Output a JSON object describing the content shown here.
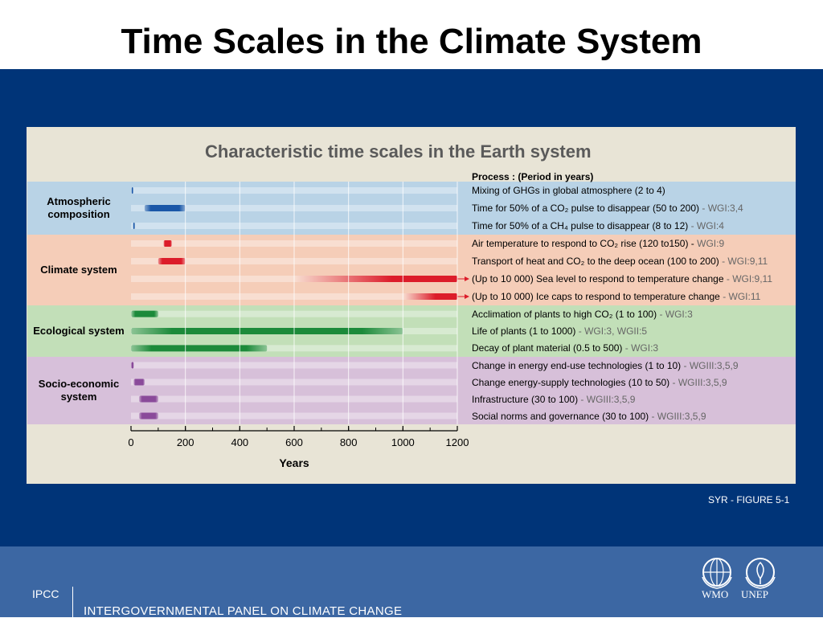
{
  "slide_title": "Time Scales in the Climate System",
  "footer": {
    "figure_credit": "SYR - FIGURE 5-1",
    "org_short": "IPCC",
    "org_long": "INTERGOVERNMENTAL PANEL ON CLIMATE CHANGE",
    "logo_wmo": "WMO",
    "logo_unep": "UNEP"
  },
  "chart_data": {
    "type": "bar",
    "title": "Characteristic time scales in the Earth system",
    "process_header": "Process : (Period in years)",
    "xlabel": "Years",
    "xlim": [
      0,
      1200
    ],
    "x_ticks": [
      0,
      200,
      400,
      600,
      800,
      1000,
      1200
    ],
    "grid": true,
    "groups": [
      {
        "name": "Atmospheric composition",
        "color": "#b9d3e6",
        "bar_color": "#1a57a8",
        "rows": [
          {
            "label": "Mixing of GHGs in global atmosphere (2 to 4)",
            "ref": "",
            "start": 2,
            "end": 4
          },
          {
            "label": "Time for 50% of a CO₂ pulse to disappear (50 to 200)",
            "ref": " - WGI:3,4",
            "start": 50,
            "end": 200
          },
          {
            "label": "Time for 50% of a CH₄ pulse to disappear (8 to 12)",
            "ref": " - WGI:4",
            "start": 8,
            "end": 12
          }
        ]
      },
      {
        "name": "Climate system",
        "color": "#f5cdb8",
        "bar_color": "#dc1c2a",
        "rows": [
          {
            "label": "Air temperature to respond to CO₂ rise (120 to150) - ",
            "ref": " WGI:9",
            "start": 120,
            "end": 150
          },
          {
            "label": "Transport of heat and CO₂ to the deep ocean (100 to 200)",
            "ref": " - WGI:9,11",
            "start": 100,
            "end": 200
          },
          {
            "label": "(Up to 10 000)  Sea level to respond to temperature change",
            "ref": " - WGI:9,11",
            "start": 600,
            "end": 10000
          },
          {
            "label": "(Up to 10 000)  Ice caps to respond to temperature change",
            "ref": " - WGI:11",
            "start": 1000,
            "end": 10000
          }
        ]
      },
      {
        "name": "Ecological system",
        "color": "#c2dfb8",
        "bar_color": "#1c8a3a",
        "rows": [
          {
            "label": "Acclimation of plants to high CO₂ (1 to 100)",
            "ref": " - WGI:3",
            "start": 1,
            "end": 100
          },
          {
            "label": "Life of plants      (1 to 1000)",
            "ref": " - WGI:3, WGII:5",
            "start": 1,
            "end": 1000
          },
          {
            "label": "Decay of plant material (0.5 to 500)",
            "ref": " - WGI:3",
            "start": 0.5,
            "end": 500
          }
        ]
      },
      {
        "name": "Socio-economic system",
        "color": "#d7c0d9",
        "bar_color": "#8a4a9a",
        "rows": [
          {
            "label": "Change in energy end-use technologies (1 to 10)",
            "ref": " - WGIII:3,5,9",
            "start": 1,
            "end": 10
          },
          {
            "label": "Change energy-supply technologies (10 to 50)",
            "ref": " - WGIII:3,5,9",
            "start": 10,
            "end": 50
          },
          {
            "label": "Infrastructure (30 to 100)",
            "ref": " - WGIII:3,5,9",
            "start": 30,
            "end": 100
          },
          {
            "label": "Social norms and governance (30 to 100)",
            "ref": " - WGIII:3,5,9",
            "start": 30,
            "end": 100
          }
        ]
      }
    ]
  }
}
